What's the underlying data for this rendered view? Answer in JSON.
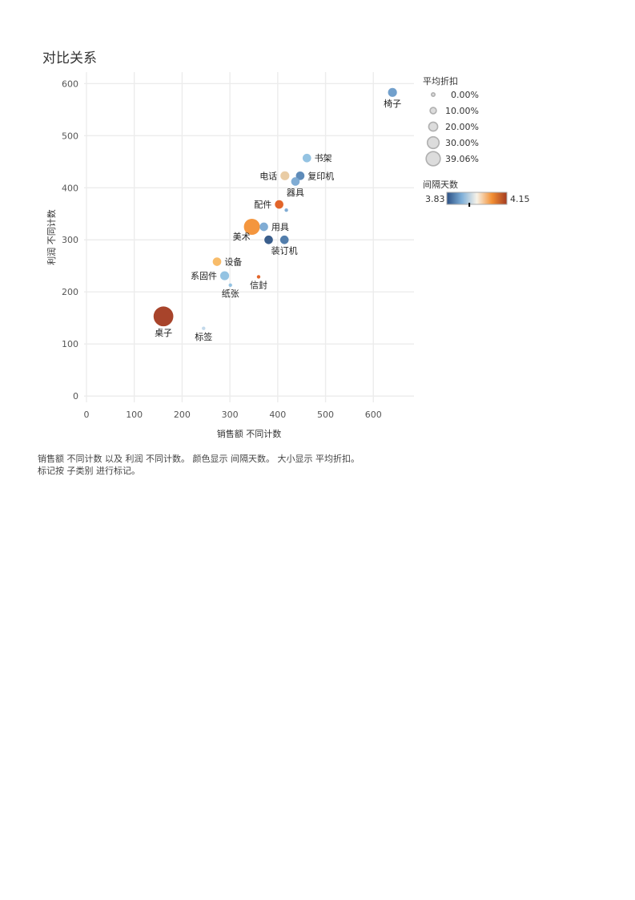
{
  "chart_data": {
    "type": "scatter",
    "title": "对比关系",
    "xlabel": "销售额 不同计数",
    "ylabel": "利润 不同计数",
    "xlim": [
      -5,
      685
    ],
    "ylim": [
      -12,
      622
    ],
    "xticks": [
      0,
      100,
      200,
      300,
      400,
      500,
      600
    ],
    "yticks": [
      0,
      100,
      200,
      300,
      400,
      500,
      600
    ],
    "grid": true,
    "points": [
      {
        "label": "椅子",
        "x": 640,
        "y": 583,
        "color": "#6a9bc9",
        "size": 0.13,
        "label_pos": "below"
      },
      {
        "label": "书架",
        "x": 461,
        "y": 457,
        "color": "#8ec0e0",
        "size": 0.12,
        "label_pos": "right"
      },
      {
        "label": "复印机",
        "x": 447,
        "y": 423,
        "color": "#5585b5",
        "size": 0.12,
        "label_pos": "right"
      },
      {
        "label": "电话",
        "x": 415,
        "y": 423,
        "color": "#e8c9a0",
        "size": 0.13,
        "label_pos": "left"
      },
      {
        "label": "器具",
        "x": 437,
        "y": 412,
        "color": "#79a8d2",
        "size": 0.12,
        "label_pos": "below"
      },
      {
        "label": "配件",
        "x": 403,
        "y": 368,
        "color": "#e05d1f",
        "size": 0.12,
        "label_pos": "left"
      },
      {
        "label": "",
        "x": 418,
        "y": 357,
        "color": "#79a8d2",
        "size": 0.0,
        "label_pos": "none"
      },
      {
        "label": "美术",
        "x": 346,
        "y": 325,
        "color": "#f39034",
        "size": 0.3,
        "label_pos": "belowleft"
      },
      {
        "label": "用具",
        "x": 371,
        "y": 325,
        "color": "#79a8d2",
        "size": 0.12,
        "label_pos": "right"
      },
      {
        "label": "",
        "x": 381,
        "y": 300,
        "color": "#2f5586",
        "size": 0.12,
        "label_pos": "none"
      },
      {
        "label": "装订机",
        "x": 414,
        "y": 300,
        "color": "#4a77a8",
        "size": 0.12,
        "label_pos": "below"
      },
      {
        "label": "设备",
        "x": 273,
        "y": 258,
        "color": "#f8b862",
        "size": 0.12,
        "label_pos": "right"
      },
      {
        "label": "系固件",
        "x": 289,
        "y": 231,
        "color": "#8ec0e0",
        "size": 0.13,
        "label_pos": "left"
      },
      {
        "label": "信封",
        "x": 360,
        "y": 229,
        "color": "#e05d1f",
        "size": 0.0,
        "label_pos": "below"
      },
      {
        "label": "纸张",
        "x": 301,
        "y": 213,
        "color": "#8ec0e0",
        "size": 0.0,
        "label_pos": "below"
      },
      {
        "label": "桌子",
        "x": 161,
        "y": 153,
        "color": "#a33a20",
        "size": 0.3906,
        "label_pos": "below"
      },
      {
        "label": "标签",
        "x": 245,
        "y": 130,
        "color": "#c0d7ea",
        "size": 0.0,
        "label_pos": "below"
      }
    ],
    "size_legend": {
      "title": "平均折扣",
      "entries": [
        {
          "label": "0.00%",
          "value": 0.0
        },
        {
          "label": "10.00%",
          "value": 0.1
        },
        {
          "label": "20.00%",
          "value": 0.2
        },
        {
          "label": "30.00%",
          "value": 0.3
        },
        {
          "label": "39.06%",
          "value": 0.3906
        }
      ],
      "placement": "top-right"
    },
    "color_legend": {
      "title": "间隔天数",
      "min_label": "3.83",
      "max_label": "4.15",
      "min": 3.83,
      "max": 4.15,
      "marker": 3.95,
      "colors": [
        "#2b5084",
        "#7fb0d9",
        "#f7f2e8",
        "#f39034",
        "#a33a20"
      ],
      "placement": "right"
    }
  },
  "caption": {
    "line1": "销售额 不同计数 以及 利润 不同计数。 颜色显示 间隔天数。 大小显示 平均折扣。",
    "line2": "标记按 子类别 进行标记。"
  }
}
